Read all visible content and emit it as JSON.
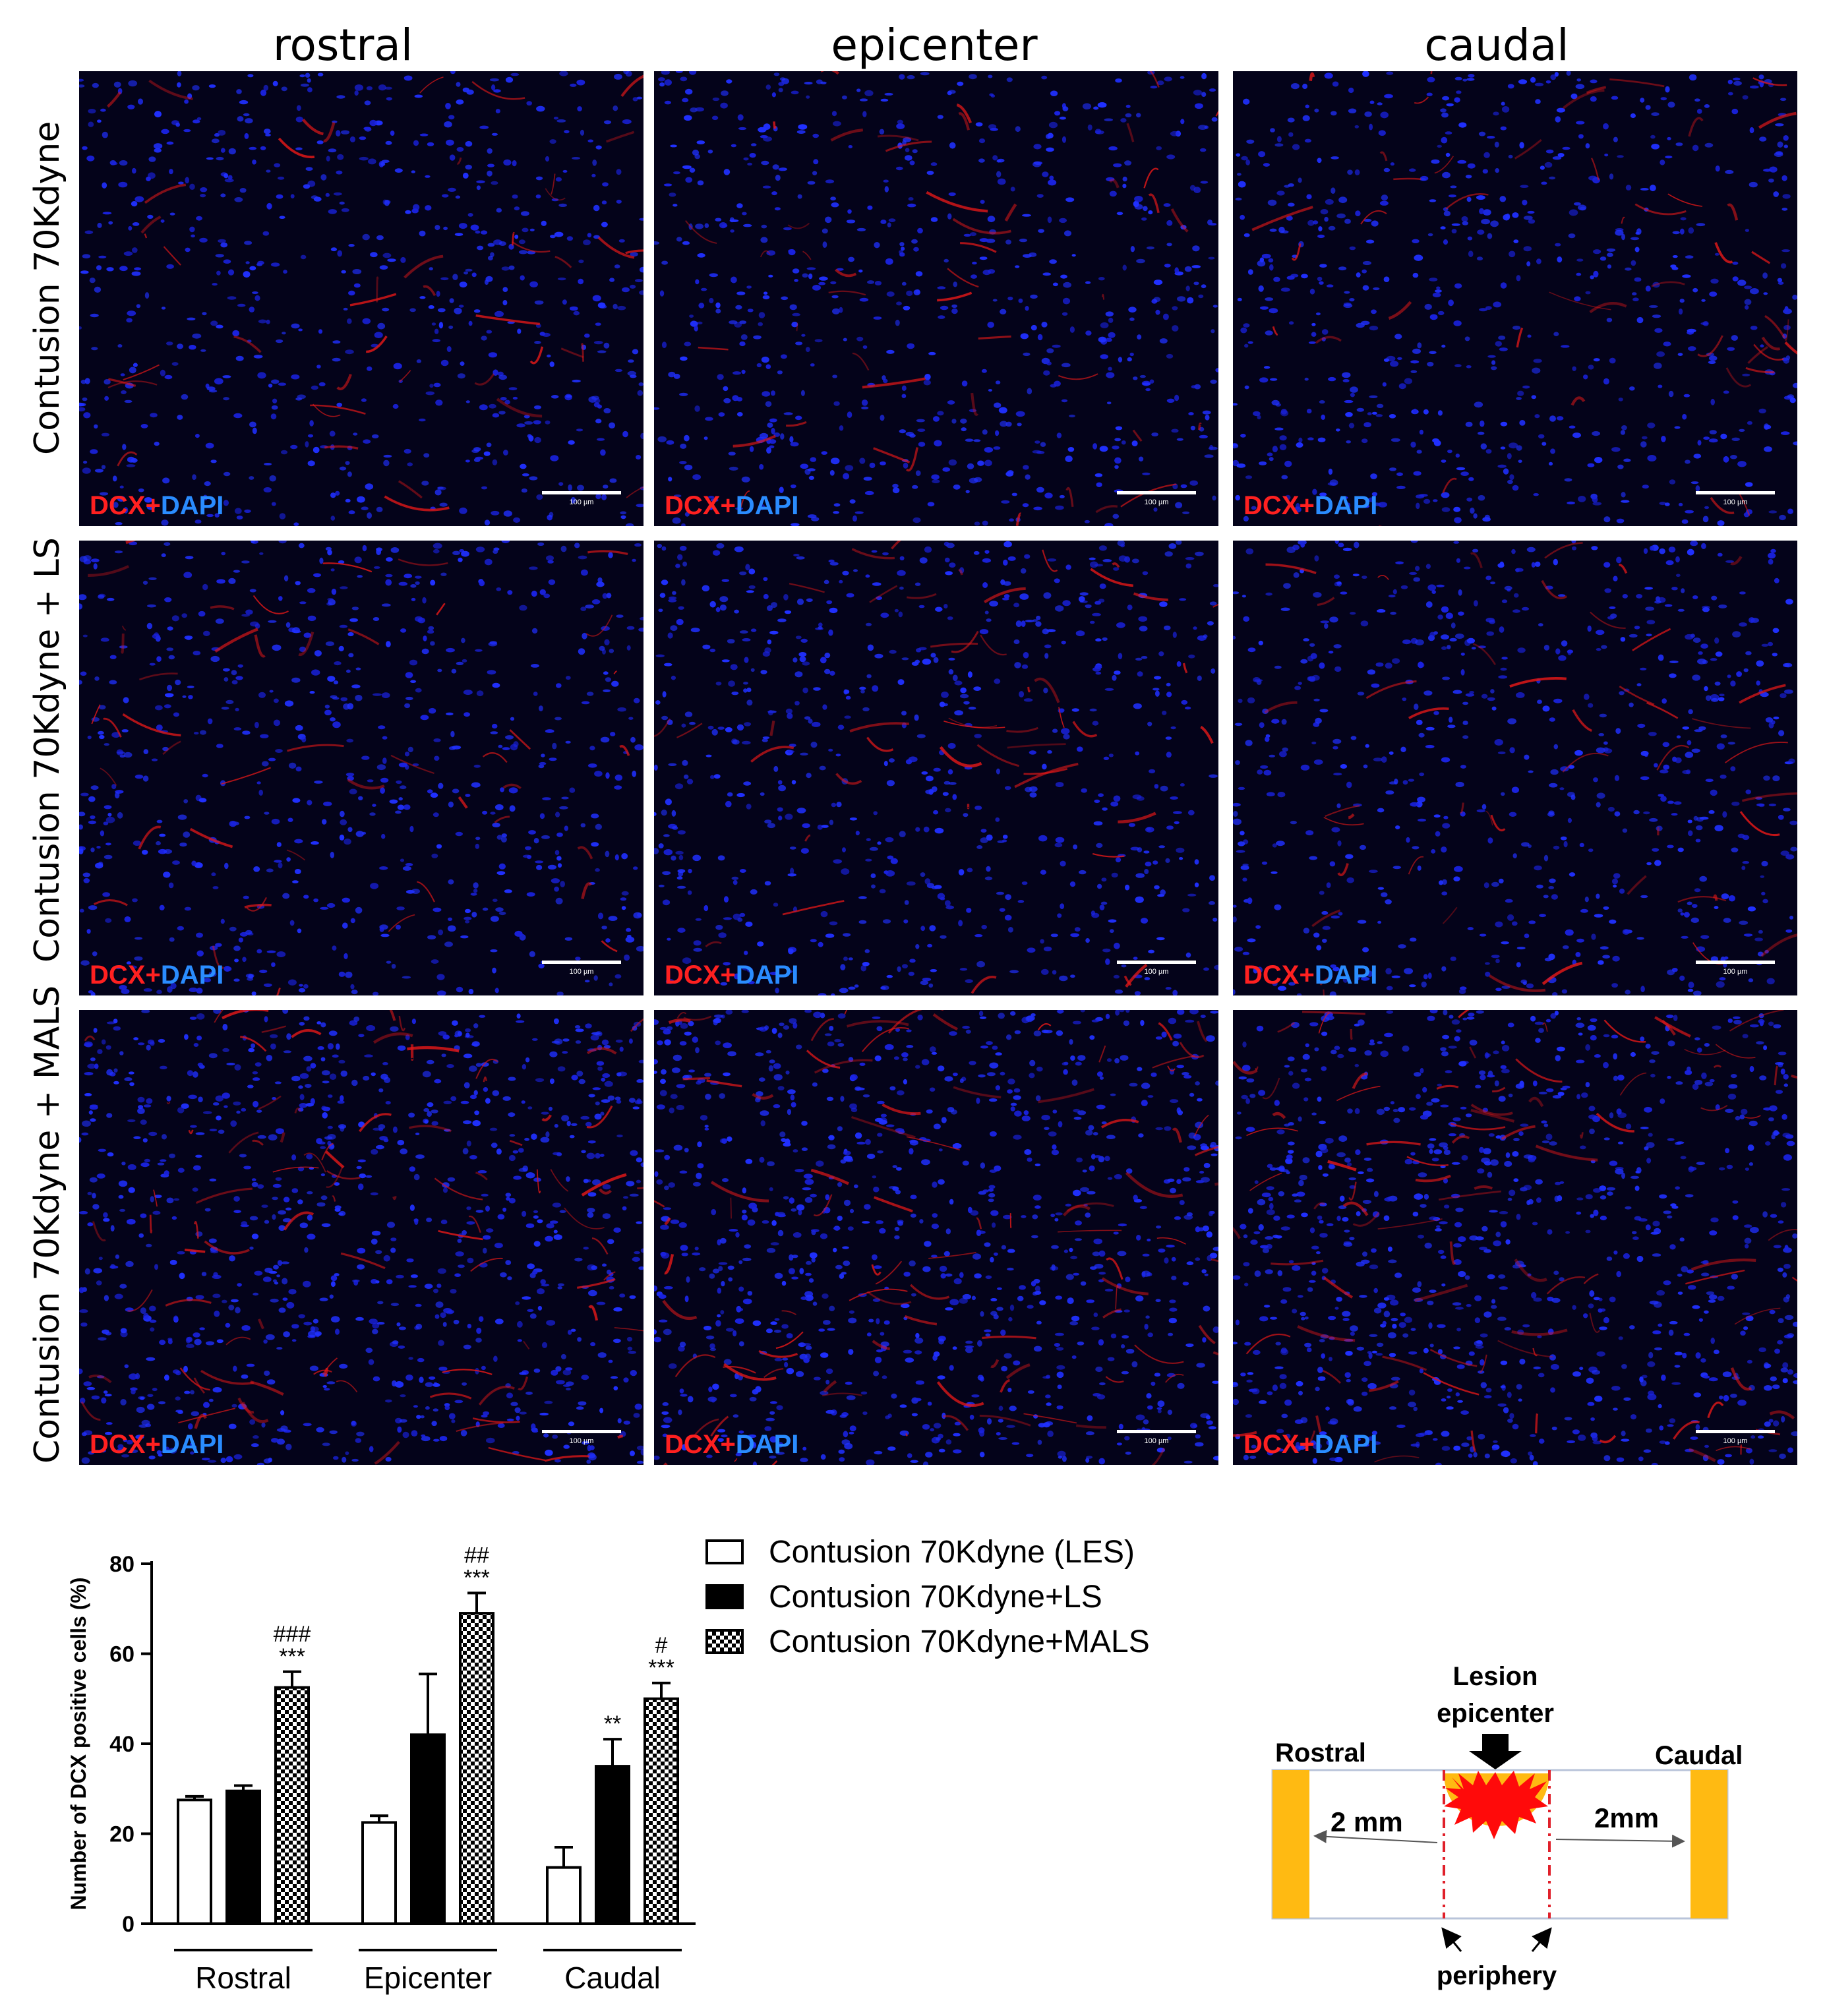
{
  "columns": [
    "rostral",
    "epicenter",
    "caudal"
  ],
  "rows": [
    "Contusion 70Kdyne",
    "Contusion 70Kdyne + LS",
    "Contusion 70Kdyne + MALS"
  ],
  "stain": {
    "dcx": "DCX",
    "plus": "+",
    "dapi": "DAPI"
  },
  "scalebar_label": "100 µm",
  "colors": {
    "dcx": "#ff2020",
    "dapi": "#2a8cff",
    "panel_background": "#04031a"
  },
  "chart_data": {
    "type": "bar",
    "ylabel": "Number of DCX positive cells (%)",
    "xlabel": "",
    "ylim": [
      0,
      80
    ],
    "yticks": [
      0,
      20,
      40,
      60,
      80
    ],
    "categories": [
      "Rostral",
      "Epicenter",
      "Caudal"
    ],
    "series": [
      {
        "name": "Contusion 70Kdyne (LES)",
        "fill": "open",
        "values": [
          27.5,
          22.5,
          12.5
        ],
        "errors": [
          0.8,
          1.5,
          4.5
        ]
      },
      {
        "name": "Contusion 70Kdyne+LS",
        "fill": "solid",
        "values": [
          29.5,
          42,
          35
        ],
        "errors": [
          1.2,
          13.5,
          6
        ]
      },
      {
        "name": "Contusion 70Kdyne+MALS",
        "fill": "checkered",
        "values": [
          52.5,
          69,
          50
        ],
        "errors": [
          3.5,
          4.5,
          3.5
        ]
      }
    ],
    "annotations": [
      {
        "category": "Rostral",
        "series": 2,
        "lines": [
          "###",
          "***"
        ]
      },
      {
        "category": "Epicenter",
        "series": 2,
        "lines": [
          "##",
          "***"
        ]
      },
      {
        "category": "Caudal",
        "series": 1,
        "lines": [
          "**"
        ]
      },
      {
        "category": "Caudal",
        "series": 2,
        "lines": [
          "#",
          "***"
        ]
      }
    ],
    "legend_position": "top-right"
  },
  "diagram": {
    "lesion_label": "Lesion",
    "epicenter_label": "epicenter",
    "rostral_label": "Rostral",
    "caudal_label": "Caudal",
    "left_distance": "2 mm",
    "right_distance": "2mm",
    "periphery_label": "periphery"
  }
}
